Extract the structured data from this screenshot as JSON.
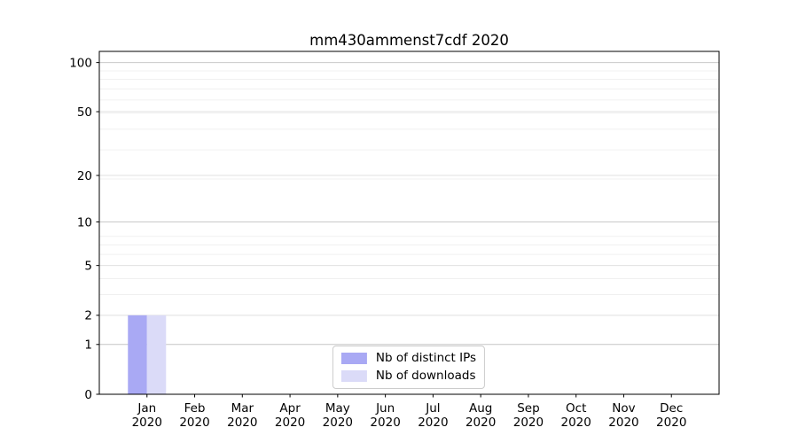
{
  "title": "mm430ammenst7cdf 2020",
  "chart_data": {
    "type": "bar",
    "title": "mm430ammenst7cdf 2020",
    "y_scale": "log10(1+y)",
    "categories": [
      "Jan",
      "Feb",
      "Mar",
      "Apr",
      "May",
      "Jun",
      "Jul",
      "Aug",
      "Sep",
      "Oct",
      "Nov",
      "Dec"
    ],
    "x_tick_line2": "2020",
    "series": [
      {
        "name": "Nb of distinct IPs",
        "color": "#a9a9f4",
        "values": [
          2,
          0,
          0,
          0,
          0,
          0,
          0,
          0,
          0,
          0,
          0,
          0
        ]
      },
      {
        "name": "Nb of downloads",
        "color": "#dbdbf8",
        "values": [
          2,
          0,
          0,
          0,
          0,
          0,
          0,
          0,
          0,
          0,
          0,
          0
        ]
      }
    ],
    "yticks": [
      0,
      1,
      2,
      5,
      10,
      20,
      50,
      100
    ],
    "ylim": [
      0,
      116
    ],
    "xlabel": "",
    "ylabel": "",
    "legend_position": "lower center",
    "grid": true,
    "colors": {
      "spine": "#000000",
      "grid_decade": "#c9c9c9",
      "grid_major": "#e2e2e2",
      "grid_minor": "#f0f0f0",
      "tick_label": "#000000",
      "legend_border": "#cccccc"
    }
  }
}
